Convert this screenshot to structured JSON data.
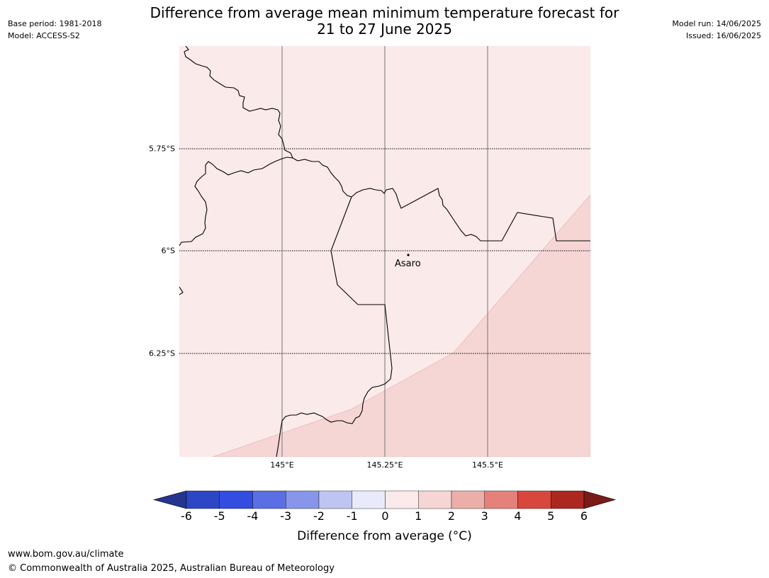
{
  "header": {
    "base_period": "Base period: 1981-2018",
    "model": "Model: ACCESS-S2",
    "model_run": "Model run: 14/06/2025",
    "issued": "Issued: 16/06/2025",
    "title_line1": "Difference from average mean minimum temperature forecast for",
    "title_line2": "21 to 27 June 2025"
  },
  "map": {
    "latitude_labels": [
      "5.75°S",
      "6°S",
      "6.25°S"
    ],
    "longitude_labels": [
      "145°E",
      "145.25°E",
      "145.5°E"
    ],
    "place_label": "Asaro",
    "category_colors": {
      "0_to_1": "#fbeaea",
      "1_to_2": "#f5d6d4"
    }
  },
  "colorbar": {
    "ticks": [
      "-6",
      "-5",
      "-4",
      "-3",
      "-2",
      "-1",
      "0",
      "1",
      "2",
      "3",
      "4",
      "5",
      "6"
    ],
    "colors": [
      "#24348f",
      "#2c46c5",
      "#324de0",
      "#5a6fe3",
      "#8796ea",
      "#bec5f2",
      "#e9ebfb",
      "#fbeaea",
      "#f5d6d4",
      "#ecaea8",
      "#e5807a",
      "#d8473d",
      "#ab2720",
      "#7a1b18"
    ],
    "title": "Difference from average (°C)"
  },
  "footer": {
    "url": "www.bom.gov.au/climate",
    "copyright": "© Commonwealth of Australia 2025, Australian Bureau of Meteorology"
  }
}
